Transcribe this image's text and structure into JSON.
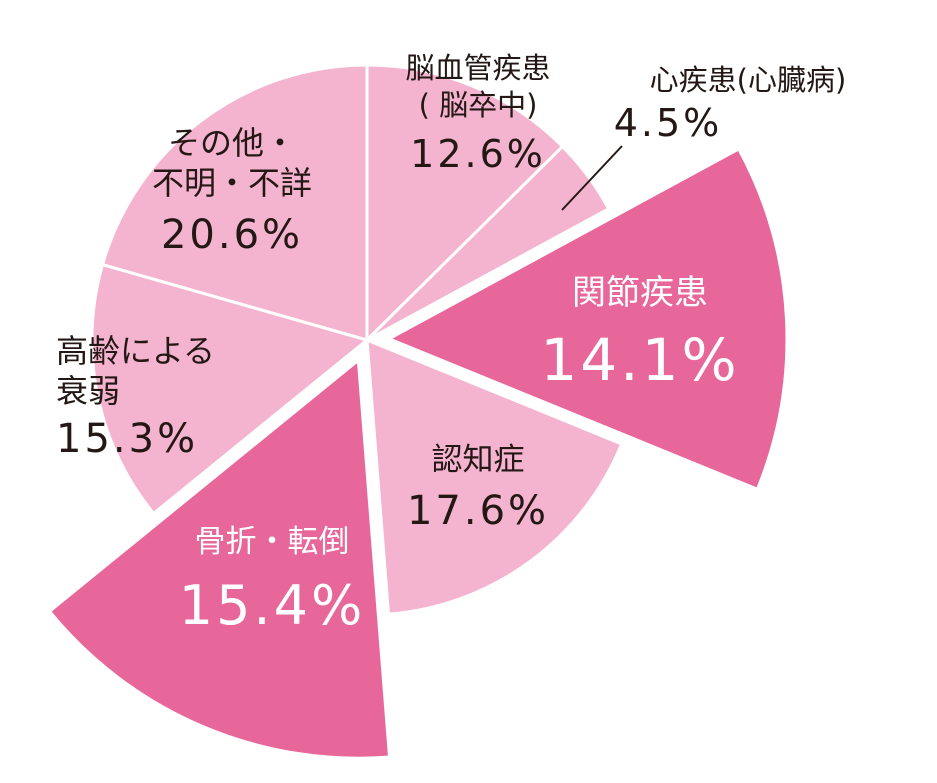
{
  "chart_data": {
    "type": "pie",
    "slices": [
      {
        "key": "cerebrovascular",
        "label": "脳血管疾患",
        "label_line2": "( 脳卒中)",
        "value": 12.6,
        "display": "12.6%",
        "exploded": false,
        "color": "#f4b3ce",
        "text_color": "#231815"
      },
      {
        "key": "heart",
        "label": "心疾患(心臓病)",
        "label_line2": "",
        "value": 4.5,
        "display": "4.5%",
        "exploded": false,
        "color": "#f4b3ce",
        "text_color": "#231815"
      },
      {
        "key": "joint",
        "label": "関節疾患",
        "label_line2": "",
        "value": 14.1,
        "display": "14.1%",
        "exploded": true,
        "color": "#e8679a",
        "text_color": "#ffffff"
      },
      {
        "key": "dementia",
        "label": "認知症",
        "label_line2": "",
        "value": 17.6,
        "display": "17.6%",
        "exploded": false,
        "color": "#f4b3ce",
        "text_color": "#231815"
      },
      {
        "key": "fracture",
        "label": "骨折・転倒",
        "label_line2": "",
        "value": 15.4,
        "display": "15.4%",
        "exploded": true,
        "color": "#e8679a",
        "text_color": "#ffffff"
      },
      {
        "key": "frailty",
        "label": "高齢による",
        "label_line2": "衰弱",
        "value": 15.3,
        "display": "15.3%",
        "exploded": false,
        "color": "#f4b3ce",
        "text_color": "#231815"
      },
      {
        "key": "other",
        "label": "その他・",
        "label_line2": "不明・不詳",
        "value": 20.6,
        "display": "20.6%",
        "exploded": false,
        "color": "#f4b3ce",
        "text_color": "#231815"
      }
    ],
    "start_angle_deg": 0,
    "direction": "clockwise",
    "legend": "none"
  }
}
